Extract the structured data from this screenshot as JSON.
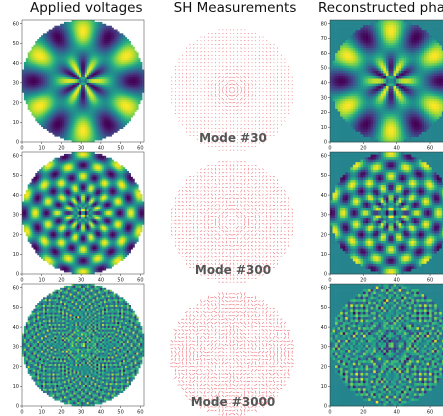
{
  "columns": [
    "Applied voltages",
    "SH Measurements",
    "Reconstructed phase"
  ],
  "rows": [
    {
      "mode_label": "Mode #30",
      "pattern": {
        "petals": 6,
        "radial": 1.6,
        "noise": 0.0
      }
    },
    {
      "mode_label": "Mode #300",
      "pattern": {
        "petals": 10,
        "radial": 5.5,
        "noise": 0.0
      }
    },
    {
      "mode_label": "Mode #3000",
      "pattern": {
        "petals": 40,
        "radial": 18,
        "noise": 0.35
      }
    }
  ],
  "axes": {
    "left_x_ticks": [
      "0",
      "10",
      "20",
      "30",
      "40",
      "50",
      "60"
    ],
    "left_y_ticks": [
      "0",
      "10",
      "20",
      "30",
      "40",
      "50",
      "60"
    ],
    "right_x_ticks": [
      "0",
      "20",
      "40",
      "60"
    ],
    "right_y_ticks_top": [
      "0",
      "10",
      "20",
      "30",
      "40",
      "50",
      "60",
      "70",
      "80"
    ],
    "right_y_ticks": [
      "0",
      "10",
      "20",
      "30",
      "40",
      "50",
      "60"
    ]
  },
  "colors": {
    "colormap": "viridis",
    "arrows": "#e8404a",
    "mode_label": "#555555"
  }
}
